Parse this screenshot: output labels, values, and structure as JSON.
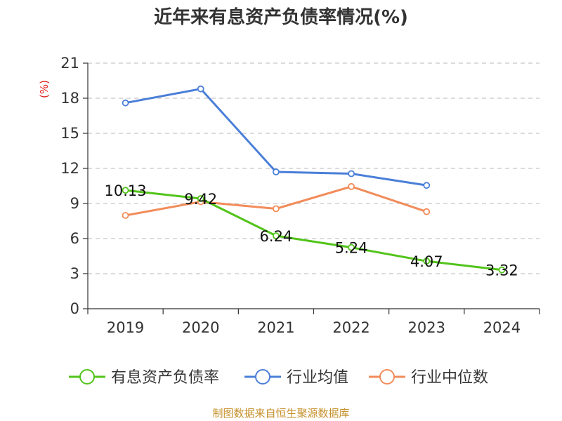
{
  "chart_data": {
    "type": "line",
    "title": "近年来有息资产负债率情况(%)",
    "ylabel": "(%)",
    "categories": [
      "2019",
      "2020",
      "2021",
      "2022",
      "2023",
      "2024"
    ],
    "ylim": [
      0,
      21
    ],
    "yticks": [
      0,
      3,
      6,
      9,
      12,
      15,
      18,
      21
    ],
    "grid": true,
    "legend_position": "bottom",
    "series": [
      {
        "name": "有息资产负债率",
        "color": "#52c41a",
        "values": [
          10.13,
          9.42,
          6.24,
          5.24,
          4.07,
          3.32
        ],
        "labels": [
          "10.13",
          "9.42",
          "6.24",
          "5.24",
          "4.07",
          "3.32"
        ]
      },
      {
        "name": "行业均值",
        "color": "#4a7fd8",
        "values": [
          17.6,
          18.8,
          11.7,
          11.55,
          10.55,
          null
        ]
      },
      {
        "name": "行业中位数",
        "color": "#f28c5a",
        "values": [
          7.98,
          9.15,
          8.55,
          10.45,
          8.3,
          null
        ]
      }
    ]
  },
  "source": "制图数据来自恒生聚源数据库"
}
